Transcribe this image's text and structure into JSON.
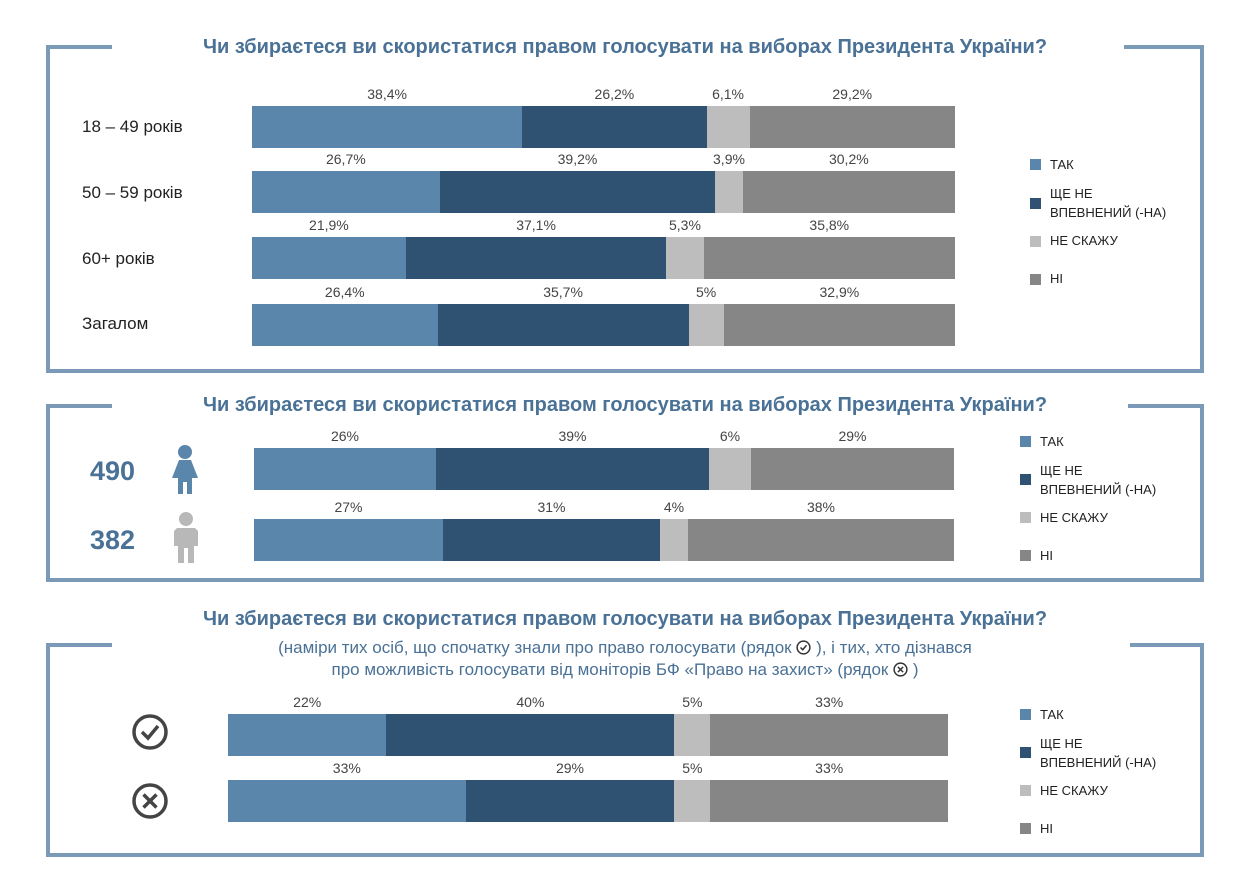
{
  "colors": {
    "tak": "#5b86ac",
    "sche": "#2f5272",
    "ne_skazhu": "#bdbdbd",
    "ni": "#868686",
    "accent": "#4a7196",
    "frame": "#7b9ab8"
  },
  "legend": [
    "ТАК",
    "ЩЕ НЕ ВПЕВНЕНИЙ (-НА)",
    "НЕ СКАЖУ",
    "НІ"
  ],
  "panel1": {
    "title": "Чи збираєтеся ви скористатися правом голосувати на виборах Президента України?"
  },
  "panel2": {
    "title": "Чи збираєтеся ви скористатися правом голосувати на виборах Президента України?",
    "female_count": "490",
    "male_count": "382"
  },
  "panel3": {
    "title": "Чи збираєтеся ви скористатися правом голосувати на виборах Президента України?",
    "subtitle_line1a": "(наміри тих осіб, що спочатку знали про право голосувати (рядок",
    "subtitle_line1b": "), і тих, хто дізнався",
    "subtitle_line2a": "про можливість голосувати від моніторів БФ «Право на захист» (рядок",
    "subtitle_line2b": ")"
  },
  "chart_data": [
    {
      "type": "bar",
      "stacked": true,
      "orientation": "horizontal",
      "title": "Чи збираєтеся ви скористатися правом голосувати на виборах Президента України?",
      "categories": [
        "18 – 49 років",
        "50 – 59 років",
        "60+ років",
        "Загалом"
      ],
      "series": [
        {
          "name": "ТАК",
          "values": [
            38.4,
            26.7,
            21.9,
            26.4
          ]
        },
        {
          "name": "ЩЕ НЕ ВПЕВНЕНИЙ (-НА)",
          "values": [
            26.2,
            39.2,
            37.1,
            35.7
          ]
        },
        {
          "name": "НЕ СКАЖУ",
          "values": [
            6.1,
            3.9,
            5.3,
            5
          ]
        },
        {
          "name": "НІ",
          "values": [
            29.2,
            30.2,
            35.8,
            32.9
          ]
        }
      ],
      "labels": [
        [
          "38,4%",
          "26,2%",
          "6,1%",
          "29,2%"
        ],
        [
          "26,7%",
          "39,2%",
          "3,9%",
          "30,2%"
        ],
        [
          "21,9%",
          "37,1%",
          "5,3%",
          "35,8%"
        ],
        [
          "26,4%",
          "35,7%",
          "5%",
          "32,9%"
        ]
      ],
      "legend_position": "right"
    },
    {
      "type": "bar",
      "stacked": true,
      "orientation": "horizontal",
      "title": "Чи збираєтеся ви скористатися правом голосувати на виборах Президента України?",
      "categories": [
        "490",
        "382"
      ],
      "series": [
        {
          "name": "ТАК",
          "values": [
            26,
            27
          ]
        },
        {
          "name": "ЩЕ НЕ ВПЕВНЕНИЙ (-НА)",
          "values": [
            39,
            31
          ]
        },
        {
          "name": "НЕ СКАЖУ",
          "values": [
            6,
            4
          ]
        },
        {
          "name": "НІ",
          "values": [
            29,
            38
          ]
        }
      ],
      "labels": [
        [
          "26%",
          "39%",
          "6%",
          "29%"
        ],
        [
          "27%",
          "31%",
          "4%",
          "38%"
        ]
      ],
      "legend_position": "right"
    },
    {
      "type": "bar",
      "stacked": true,
      "orientation": "horizontal",
      "title": "Чи збираєтеся ви скористатися правом голосувати на виборах Президента України?",
      "categories": [
        "check",
        "cross"
      ],
      "series": [
        {
          "name": "ТАК",
          "values": [
            22,
            33
          ]
        },
        {
          "name": "ЩЕ НЕ ВПЕВНЕНИЙ (-НА)",
          "values": [
            40,
            29
          ]
        },
        {
          "name": "НЕ СКАЖУ",
          "values": [
            5,
            5
          ]
        },
        {
          "name": "НІ",
          "values": [
            33,
            33
          ]
        }
      ],
      "labels": [
        [
          "22%",
          "40%",
          "5%",
          "33%"
        ],
        [
          "33%",
          "29%",
          "5%",
          "33%"
        ]
      ],
      "legend_position": "right"
    }
  ]
}
